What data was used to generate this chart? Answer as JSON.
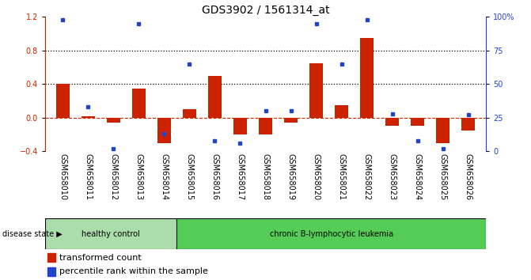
{
  "title": "GDS3902 / 1561314_at",
  "samples": [
    "GSM658010",
    "GSM658011",
    "GSM658012",
    "GSM658013",
    "GSM658014",
    "GSM658015",
    "GSM658016",
    "GSM658017",
    "GSM658018",
    "GSM658019",
    "GSM658020",
    "GSM658021",
    "GSM658022",
    "GSM658023",
    "GSM658024",
    "GSM658025",
    "GSM658026"
  ],
  "bar_values": [
    0.4,
    0.02,
    -0.06,
    0.35,
    -0.3,
    0.1,
    0.5,
    -0.2,
    -0.2,
    -0.06,
    0.65,
    0.15,
    0.95,
    -0.1,
    -0.1,
    -0.3,
    -0.15
  ],
  "dot_pct": [
    98,
    33,
    2,
    95,
    13,
    65,
    8,
    6,
    30,
    30,
    95,
    65,
    98,
    28,
    8,
    2,
    27
  ],
  "bar_color": "#cc2200",
  "dot_color": "#2244cc",
  "dashed_line_color": "#cc2200",
  "grid_line_color": "#000000",
  "left_ylim": [
    -0.4,
    1.2
  ],
  "right_ylim": [
    0,
    100
  ],
  "left_yticks": [
    -0.4,
    0.0,
    0.4,
    0.8,
    1.2
  ],
  "right_yticks": [
    0,
    25,
    50,
    75,
    100
  ],
  "right_yticklabels": [
    "0",
    "25",
    "50",
    "75",
    "100%"
  ],
  "dotted_lines": [
    0.4,
    0.8
  ],
  "dashed_line_y": 0.0,
  "healthy_control_samples": 5,
  "group1_label": "healthy control",
  "group2_label": "chronic B-lymphocytic leukemia",
  "group1_color": "#aaddaa",
  "group2_color": "#55cc55",
  "disease_state_label": "disease state",
  "legend_bar_label": "transformed count",
  "legend_dot_label": "percentile rank within the sample",
  "bar_width": 0.55,
  "bg_color": "#ffffff",
  "tick_label_area_color": "#cccccc",
  "title_fontsize": 10,
  "axis_fontsize": 7,
  "label_fontsize": 7,
  "legend_fontsize": 8
}
